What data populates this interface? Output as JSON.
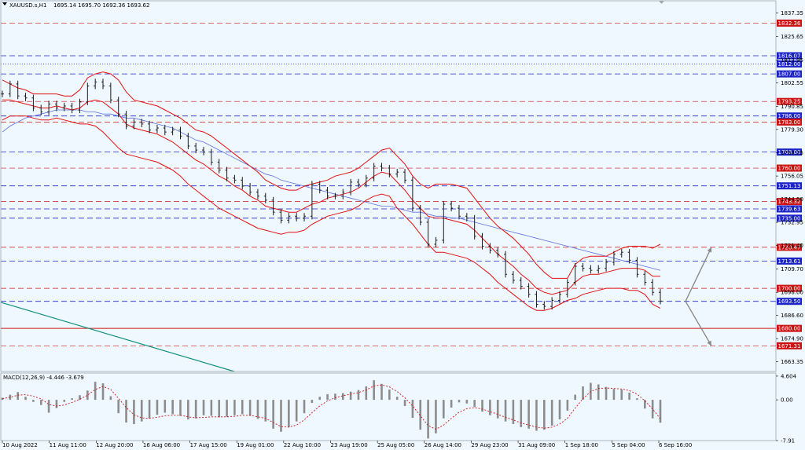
{
  "header": {
    "symbol": "XAUUSD.s,H1",
    "ohlc": "1695.14 1695.70 1692.36 1693.62"
  },
  "colors": {
    "background": "#f0f8ff",
    "blue_line": "#1c24c8",
    "red_line": "#cc1414",
    "band": "#e01010",
    "ma": "#5f6fdc",
    "teal": "#10907e",
    "bars": "#1a1a1a",
    "arrows": "#8a8a8a"
  },
  "chart_data": [
    {
      "type": "line",
      "title": "XAUUSD.s,H1",
      "ylim": [
        1658.5,
        1843.5
      ],
      "y_ticks": [
        1837.35,
        1825.65,
        1813.95,
        1802.55,
        1790.85,
        1779.3,
        1767.75,
        1756.05,
        1744.5,
        1732.95,
        1721.4,
        1709.7,
        1698.0,
        1686.6,
        1674.9,
        1663.35
      ],
      "x_ticks": [
        "10 Aug 2022",
        "11 Aug 11:00",
        "12 Aug 20:00",
        "16 Aug 06:00",
        "17 Aug 15:00",
        "19 Aug 01:00",
        "22 Aug 10:00",
        "23 Aug 19:00",
        "25 Aug 05:00",
        "26 Aug 14:00",
        "29 Aug 23:00",
        "31 Aug 09:00",
        "1 Sep 18:00",
        "5 Sep 04:00",
        "6 Sep 16:00"
      ],
      "levels": [
        {
          "label": "1832.36",
          "value": 1832.36,
          "kind": "red"
        },
        {
          "label": "1816.07",
          "value": 1816.07,
          "kind": "blue"
        },
        {
          "label": "1812.00",
          "value": 1812.0,
          "kind": "blue-dot"
        },
        {
          "label": "1807.00",
          "value": 1807.0,
          "kind": "blue"
        },
        {
          "label": "1793.25",
          "value": 1793.25,
          "kind": "red"
        },
        {
          "label": "1786.00",
          "value": 1786.0,
          "kind": "blue"
        },
        {
          "label": "1783.00",
          "value": 1783.0,
          "kind": "red"
        },
        {
          "label": "1768.00",
          "value": 1768.0,
          "kind": "blue"
        },
        {
          "label": "1760.00",
          "value": 1760.0,
          "kind": "red"
        },
        {
          "label": "1751.13",
          "value": 1751.13,
          "kind": "blue"
        },
        {
          "label": "1743.32",
          "value": 1743.32,
          "kind": "red"
        },
        {
          "label": "1739.63",
          "value": 1739.63,
          "kind": "blue"
        },
        {
          "label": "1735.00",
          "value": 1735.0,
          "kind": "blue"
        },
        {
          "label": "1720.47",
          "value": 1720.47,
          "kind": "red"
        },
        {
          "label": "1713.61",
          "value": 1713.61,
          "kind": "blue"
        },
        {
          "label": "1700.00",
          "value": 1700.0,
          "kind": "red"
        },
        {
          "label": "1693.50",
          "value": 1693.5,
          "kind": "blue"
        },
        {
          "label": "1680.00",
          "value": 1680.0,
          "kind": "red-solid"
        },
        {
          "label": "1671.31",
          "value": 1671.31,
          "kind": "red"
        }
      ],
      "price": [
        1797,
        1802,
        1796,
        1795,
        1790,
        1788,
        1792,
        1790,
        1791,
        1789,
        1793,
        1801,
        1803,
        1801,
        1794,
        1787,
        1781,
        1783,
        1782,
        1779,
        1780,
        1778,
        1779,
        1776,
        1771,
        1769,
        1768,
        1763,
        1759,
        1755,
        1754,
        1751,
        1748,
        1746,
        1744,
        1738,
        1734,
        1736,
        1735,
        1736,
        1752,
        1749,
        1746,
        1746,
        1748,
        1753,
        1752,
        1755,
        1761,
        1760,
        1757,
        1758,
        1754,
        1740,
        1733,
        1722,
        1724,
        1742,
        1740,
        1736,
        1735,
        1726,
        1721,
        1719,
        1717,
        1707,
        1704,
        1701,
        1697,
        1692,
        1691,
        1694,
        1697,
        1703,
        1711,
        1710,
        1709,
        1710,
        1713,
        1717,
        1718,
        1714,
        1707,
        1703,
        1698,
        1693.62
      ],
      "bb_upper": [
        1804,
        1802,
        1800,
        1799,
        1797,
        1797,
        1797,
        1797,
        1796,
        1796,
        1799,
        1805,
        1807,
        1808,
        1807,
        1804,
        1798,
        1794,
        1793,
        1792,
        1791,
        1789,
        1787,
        1785,
        1782,
        1779,
        1778,
        1776,
        1773,
        1770,
        1767,
        1764,
        1761,
        1758,
        1754,
        1752,
        1750,
        1749,
        1749,
        1751,
        1752,
        1753,
        1754,
        1756,
        1757,
        1758,
        1760,
        1763,
        1766,
        1769,
        1770,
        1766,
        1762,
        1756,
        1752,
        1750,
        1752,
        1752,
        1752,
        1751,
        1750,
        1745,
        1740,
        1735,
        1731,
        1728,
        1725,
        1721,
        1717,
        1712,
        1708,
        1705,
        1705,
        1705,
        1712,
        1715,
        1716,
        1716,
        1716,
        1718,
        1720,
        1721,
        1721,
        1721,
        1720,
        1722
      ],
      "bb_lower": [
        1784,
        1786,
        1786,
        1786,
        1785,
        1784,
        1784,
        1785,
        1784,
        1783,
        1782,
        1782,
        1781,
        1778,
        1774,
        1770,
        1767,
        1766,
        1765,
        1764,
        1763,
        1761,
        1759,
        1756,
        1752,
        1749,
        1746,
        1743,
        1740,
        1738,
        1736,
        1734,
        1732,
        1730,
        1729,
        1728,
        1727,
        1728,
        1728,
        1729,
        1732,
        1734,
        1736,
        1737,
        1738,
        1739,
        1741,
        1744,
        1746,
        1747,
        1746,
        1740,
        1736,
        1732,
        1727,
        1722,
        1718,
        1718,
        1717,
        1716,
        1715,
        1713,
        1710,
        1707,
        1703,
        1700,
        1697,
        1694,
        1691,
        1689,
        1689,
        1690,
        1692,
        1694,
        1695,
        1697,
        1698,
        1699,
        1700,
        1700,
        1700,
        1699,
        1699,
        1697,
        1692,
        1690
      ],
      "bb_middle": [
        1794,
        1794,
        1793,
        1792,
        1791,
        1790,
        1790,
        1791,
        1790,
        1789,
        1790,
        1793,
        1794,
        1793,
        1790,
        1787,
        1782,
        1780,
        1779,
        1778,
        1777,
        1775,
        1773,
        1770,
        1767,
        1764,
        1762,
        1759,
        1756,
        1754,
        1751,
        1749,
        1746,
        1744,
        1741,
        1740,
        1739,
        1738,
        1738,
        1740,
        1742,
        1743,
        1745,
        1746,
        1747,
        1748,
        1750,
        1753,
        1756,
        1758,
        1757,
        1753,
        1749,
        1744,
        1740,
        1736,
        1735,
        1735,
        1734,
        1733,
        1732,
        1729,
        1725,
        1721,
        1717,
        1714,
        1711,
        1707,
        1704,
        1700,
        1698,
        1697,
        1698,
        1699,
        1703,
        1706,
        1707,
        1707,
        1708,
        1709,
        1710,
        1710,
        1710,
        1709,
        1706,
        1706
      ],
      "ma": [
        1778,
        1781,
        1783,
        1785,
        1786,
        1787,
        1788,
        1789,
        1789,
        1789,
        1789,
        1788,
        1788,
        1787,
        1787,
        1786,
        1785,
        1785,
        1784,
        1783,
        1782,
        1781,
        1780,
        1778,
        1776,
        1774,
        1773,
        1771,
        1769,
        1767,
        1765,
        1763,
        1761,
        1759,
        1757,
        1756,
        1754,
        1753,
        1752,
        1751,
        1750,
        1749,
        1748,
        1747,
        1746,
        1745,
        1744,
        1743,
        1742,
        1741,
        1741,
        1740,
        1739,
        1738,
        1738,
        1737,
        1736,
        1736,
        1735,
        1735,
        1734,
        1733,
        1732,
        1731,
        1730,
        1729,
        1728,
        1727,
        1726,
        1725,
        1724,
        1723,
        1722,
        1721,
        1720,
        1719,
        1718,
        1717,
        1716,
        1715,
        1714,
        1713,
        1712,
        1711,
        1710,
        1709
      ],
      "projection": {
        "pivot": 1693.5,
        "up": 1720.47,
        "down": 1671.31
      }
    },
    {
      "type": "bar",
      "title": "MACD(12,26,9) -4.446 -3.679",
      "ylim": [
        -7.91,
        5.2
      ],
      "y_ticks": [
        4.604,
        0.0,
        -7.91
      ],
      "histogram": [
        0.4,
        1.0,
        1.5,
        0.6,
        -0.4,
        -1.0,
        -2.5,
        -1.6,
        -0.4,
        0.3,
        0.9,
        1.8,
        3.5,
        3.2,
        0.7,
        -2.6,
        -4.4,
        -4.7,
        -4.2,
        -3.6,
        -2.9,
        -2.5,
        -2.8,
        -3.1,
        -3.8,
        -3.6,
        -3.0,
        -3.1,
        -3.4,
        -3.3,
        -3.0,
        -2.8,
        -3.1,
        -3.7,
        -4.2,
        -5.6,
        -6.2,
        -5.3,
        -4.2,
        -2.6,
        -0.6,
        0.6,
        1.1,
        1.2,
        1.3,
        1.6,
        1.9,
        2.6,
        3.8,
        3.1,
        2.0,
        0.6,
        -1.2,
        -3.5,
        -5.8,
        -7.5,
        -6.5,
        -3.6,
        -1.5,
        -0.5,
        -0.7,
        -1.4,
        -2.3,
        -3.0,
        -3.6,
        -4.2,
        -4.7,
        -5.3,
        -5.6,
        -6.0,
        -5.8,
        -5.0,
        -3.8,
        -2.1,
        1.0,
        2.6,
        3.3,
        3.0,
        2.5,
        2.1,
        2.0,
        1.4,
        0.3,
        -1.7,
        -3.6,
        -4.446
      ],
      "signal": [
        0.2,
        0.5,
        0.9,
        1.0,
        0.7,
        0.2,
        -0.9,
        -1.2,
        -1.0,
        -0.5,
        0.1,
        0.9,
        2.0,
        2.6,
        2.0,
        0.3,
        -1.5,
        -2.9,
        -3.5,
        -3.6,
        -3.4,
        -3.1,
        -3.0,
        -3.0,
        -3.3,
        -3.5,
        -3.4,
        -3.3,
        -3.3,
        -3.3,
        -3.2,
        -3.0,
        -3.0,
        -3.3,
        -3.6,
        -4.4,
        -5.2,
        -5.3,
        -4.9,
        -3.9,
        -2.5,
        -1.2,
        -0.2,
        0.4,
        0.8,
        1.1,
        1.4,
        1.9,
        2.7,
        2.9,
        2.5,
        1.6,
        0.4,
        -1.2,
        -3.1,
        -5.0,
        -5.7,
        -4.9,
        -3.6,
        -2.4,
        -1.7,
        -1.5,
        -1.8,
        -2.3,
        -2.8,
        -3.4,
        -3.9,
        -4.5,
        -4.9,
        -5.3,
        -5.5,
        -5.3,
        -4.7,
        -3.6,
        -1.6,
        0.2,
        1.6,
        2.2,
        2.3,
        2.2,
        2.1,
        1.8,
        1.1,
        -0.2,
        -1.8,
        -3.679
      ]
    }
  ]
}
